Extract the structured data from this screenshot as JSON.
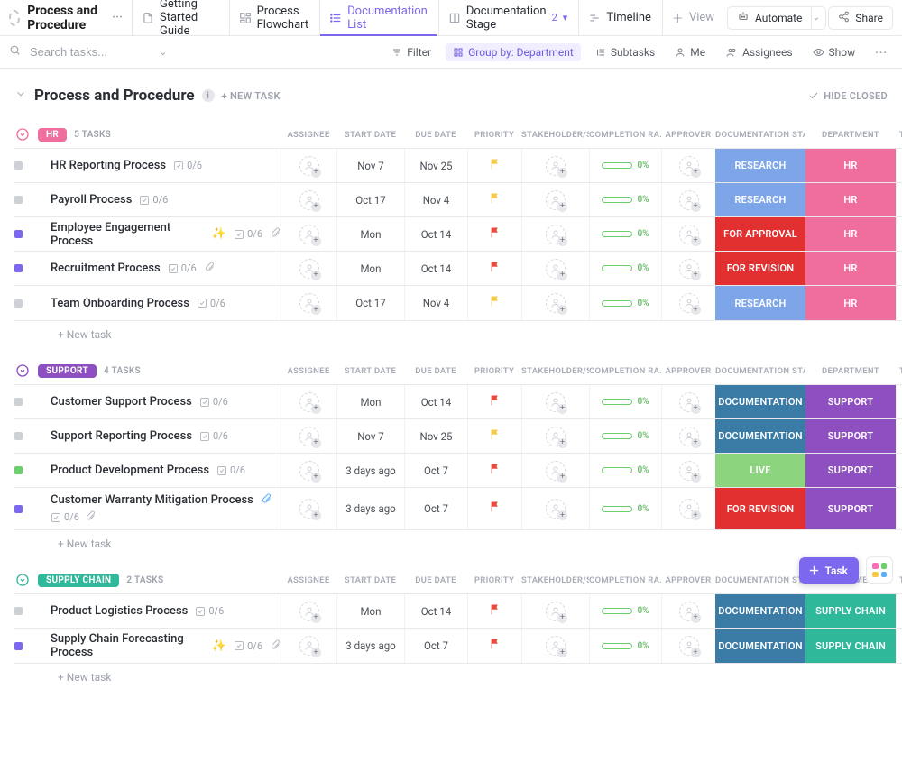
{
  "page": {
    "title": "Process and Procedure",
    "section_title": "Process and Procedure"
  },
  "tabs": [
    {
      "label": "Getting Started Guide",
      "active": false
    },
    {
      "label": "Process Flowchart",
      "active": false
    },
    {
      "label": "Documentation List",
      "active": true
    },
    {
      "label": "Documentation Stage",
      "badge": "2",
      "active": false
    },
    {
      "label": "Timeline",
      "active": false
    }
  ],
  "view_btn": "View",
  "automate": "Automate",
  "share": "Share",
  "search_placeholder": "Search tasks...",
  "filters": {
    "filter": "Filter",
    "groupby": "Group by: Department",
    "subtasks": "Subtasks",
    "me": "Me",
    "assignees": "Assignees",
    "show": "Show"
  },
  "newtask_caps": "+ NEW TASK",
  "hide_closed": "HIDE CLOSED",
  "columns": [
    "ASSIGNEE",
    "START DATE",
    "DUE DATE",
    "PRIORITY",
    "STAKEHOLDER/S",
    "COMPLETION RA...",
    "APPROVER",
    "DOCUMENTATION STAGE",
    "DEPARTMENT",
    "TY"
  ],
  "newtask_row": "+ New task",
  "colors": {
    "stage": {
      "RESEARCH": "#7ea5e8",
      "FOR APPROVAL": "#e23030",
      "FOR REVISION": "#e23030",
      "DOCUMENTATION": "#3a7ca5",
      "LIVE": "#8cd47e"
    },
    "dept": {
      "HR": "#ef6e9d",
      "SUPPORT": "#8e4fc0",
      "SUPPLY CHAIN": "#2fb89a"
    },
    "group_tag": {
      "HR": "#ef6e9d",
      "SUPPORT": "#8e4fc0",
      "SUPPLY CHAIN": "#2fb89a"
    },
    "status_sq": {
      "grey": "#cdd0d5",
      "purple": "#7b68ee",
      "green": "#6bcf6b"
    },
    "flag": {
      "yellow": "#f7c948",
      "red": "#e84b3c"
    }
  },
  "groups": [
    {
      "name": "HR",
      "count": "5 TASKS",
      "rows": [
        {
          "status": "grey",
          "name": "HR Reporting Process",
          "chk": "0/6",
          "start": "Nov 7",
          "due": "Nov 25",
          "flag": "yellow",
          "comp": "0%",
          "stage": "RESEARCH",
          "dept": "HR"
        },
        {
          "status": "grey",
          "name": "Payroll Process",
          "chk": "0/6",
          "start": "Oct 17",
          "due": "Nov 4",
          "flag": "yellow",
          "comp": "0%",
          "stage": "RESEARCH",
          "dept": "HR"
        },
        {
          "status": "purple",
          "name": "Employee Engagement Process",
          "chk": "0/6",
          "decor": "sparkle",
          "clip": true,
          "start": "Mon",
          "due": "Oct 14",
          "flag": "red",
          "comp": "0%",
          "stage": "FOR APPROVAL",
          "dept": "HR"
        },
        {
          "status": "purple",
          "name": "Recruitment Process",
          "chk": "0/6",
          "clip": true,
          "start": "Mon",
          "due": "Oct 14",
          "flag": "red",
          "comp": "0%",
          "stage": "FOR REVISION",
          "dept": "HR"
        },
        {
          "status": "grey",
          "name": "Team Onboarding Process",
          "chk": "0/6",
          "start": "Oct 17",
          "due": "Nov 4",
          "flag": "yellow",
          "comp": "0%",
          "stage": "RESEARCH",
          "dept": "HR"
        }
      ]
    },
    {
      "name": "SUPPORT",
      "count": "4 TASKS",
      "rows": [
        {
          "status": "grey",
          "name": "Customer Support Process",
          "chk": "0/6",
          "start": "Mon",
          "due": "Oct 14",
          "flag": "red",
          "comp": "0%",
          "stage": "DOCUMENTATION",
          "dept": "SUPPORT"
        },
        {
          "status": "grey",
          "name": "Support Reporting Process",
          "chk": "0/6",
          "start": "Nov 7",
          "due": "Nov 25",
          "flag": "yellow",
          "comp": "0%",
          "stage": "DOCUMENTATION",
          "dept": "SUPPORT"
        },
        {
          "status": "green",
          "name": "Product Development Process",
          "chk": "0/6",
          "start": "3 days ago",
          "due": "Oct 7",
          "flag": "red",
          "comp": "0%",
          "stage": "LIVE",
          "dept": "SUPPORT"
        },
        {
          "status": "purple",
          "name": "Customer Warranty Mitigation Process",
          "chk": "0/6",
          "twoLine": true,
          "clipBlue": true,
          "clip": true,
          "start": "3 days ago",
          "due": "Oct 7",
          "flag": "red",
          "comp": "0%",
          "stage": "FOR REVISION",
          "dept": "SUPPORT"
        }
      ]
    },
    {
      "name": "SUPPLY CHAIN",
      "count": "2 TASKS",
      "rows": [
        {
          "status": "grey",
          "name": "Product Logistics Process",
          "chk": "0/6",
          "start": "Mon",
          "due": "Oct 14",
          "flag": "red",
          "comp": "0%",
          "stage": "DOCUMENTATION",
          "dept": "SUPPLY CHAIN"
        },
        {
          "status": "purple",
          "name": "Supply Chain Forecasting Process",
          "chk": "0/6",
          "decor": "sparkle",
          "clip": true,
          "start": "3 days ago",
          "due": "Oct 7",
          "flag": "red",
          "comp": "0%",
          "stage": "DOCUMENTATION",
          "dept": "SUPPLY CHAIN",
          "deptLabel": "SUPPLY CHAIN"
        }
      ]
    }
  ],
  "fab": "Task",
  "fab_colors": [
    "#f96fb5",
    "#6bcf6b",
    "#f7c948",
    "#5ab0ff"
  ]
}
